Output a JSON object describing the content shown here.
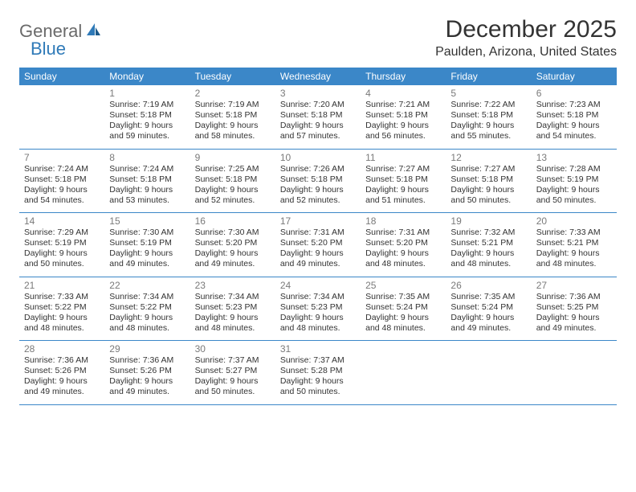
{
  "logo": {
    "part1": "General",
    "part2": "Blue"
  },
  "title": "December 2025",
  "location": "Paulden, Arizona, United States",
  "colors": {
    "header_bg": "#3b87c8",
    "header_text": "#ffffff",
    "day_number": "#7a7a7a",
    "body_text": "#333333",
    "logo_gray": "#6a6a6a",
    "logo_blue": "#2f7ab8",
    "row_border": "#3b87c8"
  },
  "day_names": [
    "Sunday",
    "Monday",
    "Tuesday",
    "Wednesday",
    "Thursday",
    "Friday",
    "Saturday"
  ],
  "weeks": [
    [
      null,
      {
        "n": "1",
        "sr": "Sunrise: 7:19 AM",
        "ss": "Sunset: 5:18 PM",
        "d1": "Daylight: 9 hours",
        "d2": "and 59 minutes."
      },
      {
        "n": "2",
        "sr": "Sunrise: 7:19 AM",
        "ss": "Sunset: 5:18 PM",
        "d1": "Daylight: 9 hours",
        "d2": "and 58 minutes."
      },
      {
        "n": "3",
        "sr": "Sunrise: 7:20 AM",
        "ss": "Sunset: 5:18 PM",
        "d1": "Daylight: 9 hours",
        "d2": "and 57 minutes."
      },
      {
        "n": "4",
        "sr": "Sunrise: 7:21 AM",
        "ss": "Sunset: 5:18 PM",
        "d1": "Daylight: 9 hours",
        "d2": "and 56 minutes."
      },
      {
        "n": "5",
        "sr": "Sunrise: 7:22 AM",
        "ss": "Sunset: 5:18 PM",
        "d1": "Daylight: 9 hours",
        "d2": "and 55 minutes."
      },
      {
        "n": "6",
        "sr": "Sunrise: 7:23 AM",
        "ss": "Sunset: 5:18 PM",
        "d1": "Daylight: 9 hours",
        "d2": "and 54 minutes."
      }
    ],
    [
      {
        "n": "7",
        "sr": "Sunrise: 7:24 AM",
        "ss": "Sunset: 5:18 PM",
        "d1": "Daylight: 9 hours",
        "d2": "and 54 minutes."
      },
      {
        "n": "8",
        "sr": "Sunrise: 7:24 AM",
        "ss": "Sunset: 5:18 PM",
        "d1": "Daylight: 9 hours",
        "d2": "and 53 minutes."
      },
      {
        "n": "9",
        "sr": "Sunrise: 7:25 AM",
        "ss": "Sunset: 5:18 PM",
        "d1": "Daylight: 9 hours",
        "d2": "and 52 minutes."
      },
      {
        "n": "10",
        "sr": "Sunrise: 7:26 AM",
        "ss": "Sunset: 5:18 PM",
        "d1": "Daylight: 9 hours",
        "d2": "and 52 minutes."
      },
      {
        "n": "11",
        "sr": "Sunrise: 7:27 AM",
        "ss": "Sunset: 5:18 PM",
        "d1": "Daylight: 9 hours",
        "d2": "and 51 minutes."
      },
      {
        "n": "12",
        "sr": "Sunrise: 7:27 AM",
        "ss": "Sunset: 5:18 PM",
        "d1": "Daylight: 9 hours",
        "d2": "and 50 minutes."
      },
      {
        "n": "13",
        "sr": "Sunrise: 7:28 AM",
        "ss": "Sunset: 5:19 PM",
        "d1": "Daylight: 9 hours",
        "d2": "and 50 minutes."
      }
    ],
    [
      {
        "n": "14",
        "sr": "Sunrise: 7:29 AM",
        "ss": "Sunset: 5:19 PM",
        "d1": "Daylight: 9 hours",
        "d2": "and 50 minutes."
      },
      {
        "n": "15",
        "sr": "Sunrise: 7:30 AM",
        "ss": "Sunset: 5:19 PM",
        "d1": "Daylight: 9 hours",
        "d2": "and 49 minutes."
      },
      {
        "n": "16",
        "sr": "Sunrise: 7:30 AM",
        "ss": "Sunset: 5:20 PM",
        "d1": "Daylight: 9 hours",
        "d2": "and 49 minutes."
      },
      {
        "n": "17",
        "sr": "Sunrise: 7:31 AM",
        "ss": "Sunset: 5:20 PM",
        "d1": "Daylight: 9 hours",
        "d2": "and 49 minutes."
      },
      {
        "n": "18",
        "sr": "Sunrise: 7:31 AM",
        "ss": "Sunset: 5:20 PM",
        "d1": "Daylight: 9 hours",
        "d2": "and 48 minutes."
      },
      {
        "n": "19",
        "sr": "Sunrise: 7:32 AM",
        "ss": "Sunset: 5:21 PM",
        "d1": "Daylight: 9 hours",
        "d2": "and 48 minutes."
      },
      {
        "n": "20",
        "sr": "Sunrise: 7:33 AM",
        "ss": "Sunset: 5:21 PM",
        "d1": "Daylight: 9 hours",
        "d2": "and 48 minutes."
      }
    ],
    [
      {
        "n": "21",
        "sr": "Sunrise: 7:33 AM",
        "ss": "Sunset: 5:22 PM",
        "d1": "Daylight: 9 hours",
        "d2": "and 48 minutes."
      },
      {
        "n": "22",
        "sr": "Sunrise: 7:34 AM",
        "ss": "Sunset: 5:22 PM",
        "d1": "Daylight: 9 hours",
        "d2": "and 48 minutes."
      },
      {
        "n": "23",
        "sr": "Sunrise: 7:34 AM",
        "ss": "Sunset: 5:23 PM",
        "d1": "Daylight: 9 hours",
        "d2": "and 48 minutes."
      },
      {
        "n": "24",
        "sr": "Sunrise: 7:34 AM",
        "ss": "Sunset: 5:23 PM",
        "d1": "Daylight: 9 hours",
        "d2": "and 48 minutes."
      },
      {
        "n": "25",
        "sr": "Sunrise: 7:35 AM",
        "ss": "Sunset: 5:24 PM",
        "d1": "Daylight: 9 hours",
        "d2": "and 48 minutes."
      },
      {
        "n": "26",
        "sr": "Sunrise: 7:35 AM",
        "ss": "Sunset: 5:24 PM",
        "d1": "Daylight: 9 hours",
        "d2": "and 49 minutes."
      },
      {
        "n": "27",
        "sr": "Sunrise: 7:36 AM",
        "ss": "Sunset: 5:25 PM",
        "d1": "Daylight: 9 hours",
        "d2": "and 49 minutes."
      }
    ],
    [
      {
        "n": "28",
        "sr": "Sunrise: 7:36 AM",
        "ss": "Sunset: 5:26 PM",
        "d1": "Daylight: 9 hours",
        "d2": "and 49 minutes."
      },
      {
        "n": "29",
        "sr": "Sunrise: 7:36 AM",
        "ss": "Sunset: 5:26 PM",
        "d1": "Daylight: 9 hours",
        "d2": "and 49 minutes."
      },
      {
        "n": "30",
        "sr": "Sunrise: 7:37 AM",
        "ss": "Sunset: 5:27 PM",
        "d1": "Daylight: 9 hours",
        "d2": "and 50 minutes."
      },
      {
        "n": "31",
        "sr": "Sunrise: 7:37 AM",
        "ss": "Sunset: 5:28 PM",
        "d1": "Daylight: 9 hours",
        "d2": "and 50 minutes."
      },
      null,
      null,
      null
    ]
  ]
}
